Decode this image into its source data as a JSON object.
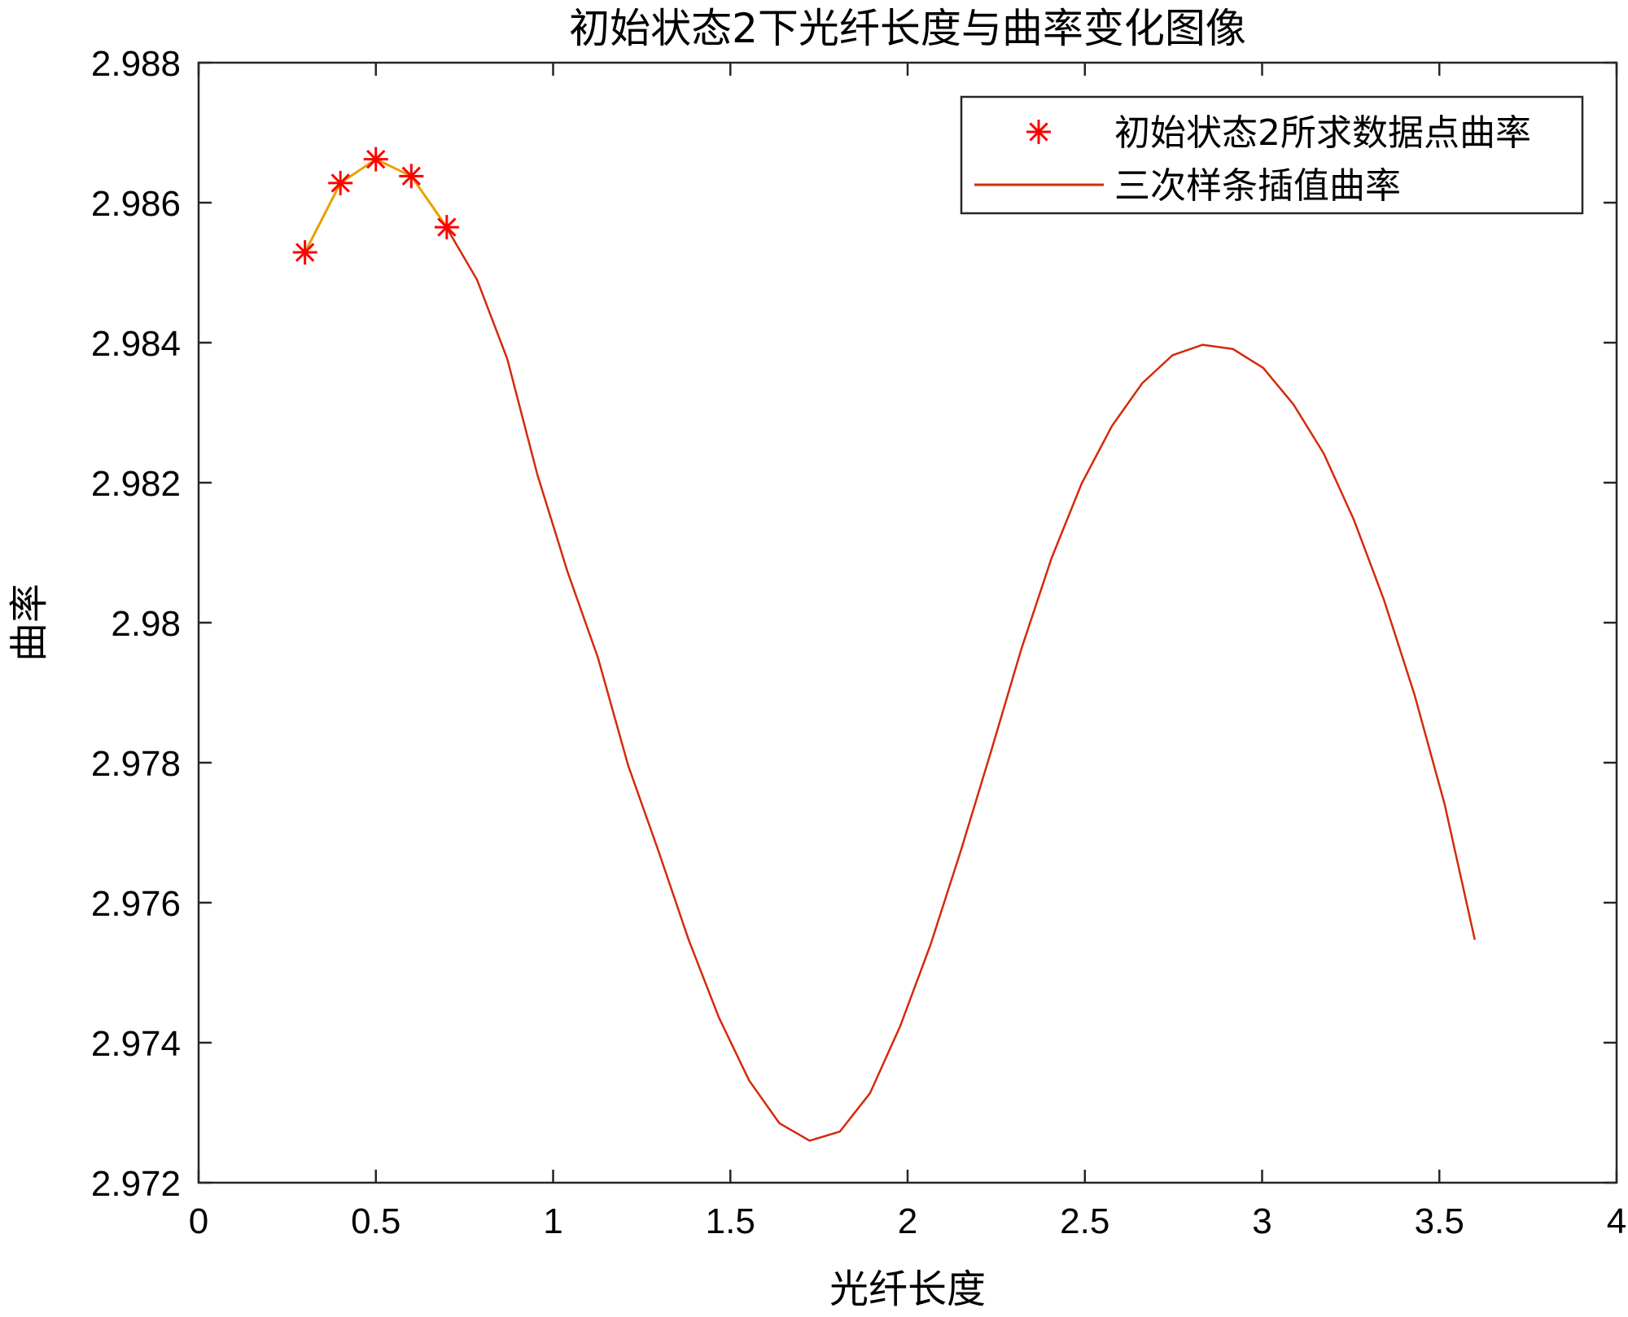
{
  "chart_data": {
    "type": "line",
    "title": "初始状态2下光纤长度与曲率变化图像",
    "xlabel": "光纤长度",
    "ylabel": "曲率",
    "xlim": [
      0,
      4
    ],
    "ylim": [
      2.972,
      2.988
    ],
    "xticks": [
      0,
      0.5,
      1,
      1.5,
      2,
      2.5,
      3,
      3.5,
      4
    ],
    "xtick_labels": [
      "0",
      "0.5",
      "1",
      "1.5",
      "2",
      "2.5",
      "3",
      "3.5",
      "4"
    ],
    "yticks": [
      2.972,
      2.974,
      2.976,
      2.978,
      2.98,
      2.982,
      2.984,
      2.986,
      2.988
    ],
    "ytick_labels": [
      "2.972",
      "2.974",
      "2.976",
      "2.978",
      "2.98",
      "2.982",
      "2.984",
      "2.986",
      "2.988"
    ],
    "grid": false,
    "legend_position": "top-right",
    "series": [
      {
        "name": "初始状态2所求数据点曲率",
        "style": "markers-star",
        "color": "#ff0000",
        "x": [
          0.3,
          0.4,
          0.5,
          0.6,
          0.7
        ],
        "y": [
          2.98529,
          2.98628,
          2.98662,
          2.98638,
          2.98565
        ]
      },
      {
        "name": "",
        "style": "line",
        "color": "#e8a000",
        "x": [
          0.3,
          0.4,
          0.5,
          0.6,
          0.7
        ],
        "y": [
          2.98529,
          2.98628,
          2.98662,
          2.98638,
          2.98565
        ]
      },
      {
        "name": "三次样条插值曲率",
        "style": "line",
        "color": "#d42a0a",
        "x_start": 0.7,
        "x_end": 3.6,
        "y": [
          2.98564,
          2.9849,
          2.98377,
          2.98211,
          2.98072,
          2.9795,
          2.97796,
          2.97674,
          2.97547,
          2.97436,
          2.97346,
          2.97285,
          2.9726,
          2.97273,
          2.97328,
          2.97424,
          2.9754,
          2.97674,
          2.97816,
          2.97962,
          2.98092,
          2.98199,
          2.98281,
          2.98342,
          2.98382,
          2.98397,
          2.98391,
          2.98364,
          2.98312,
          2.98242,
          2.98147,
          2.98032,
          2.97898,
          2.97741,
          2.97547
        ]
      }
    ]
  }
}
